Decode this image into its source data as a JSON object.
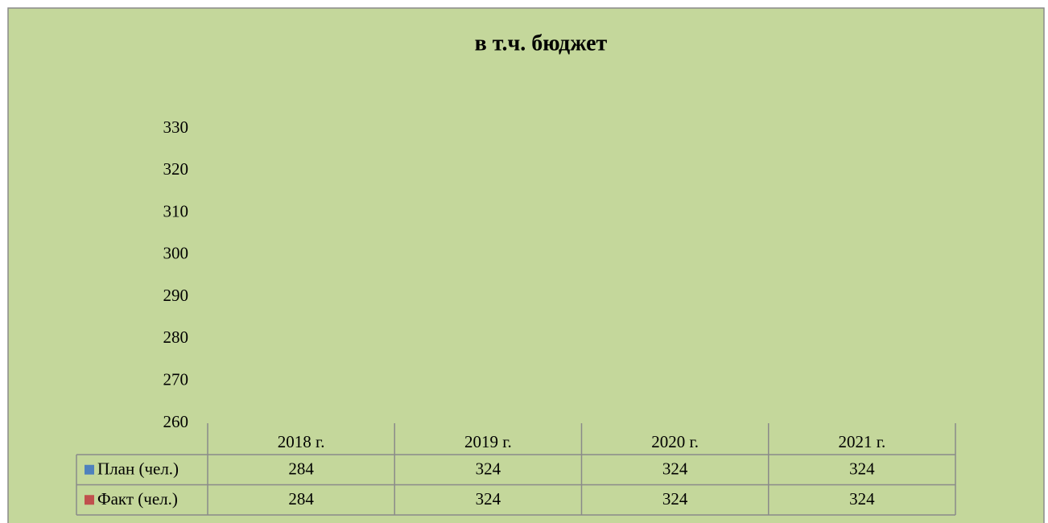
{
  "chart_data": {
    "type": "bar",
    "title": "в т.ч. бюджет",
    "categories": [
      "2018 г.",
      "2019 г.",
      "2020 г.",
      "2021 г."
    ],
    "series": [
      {
        "name": "План (чел.)",
        "color": "#4f81bd",
        "values": [
          284,
          324,
          324,
          324
        ]
      },
      {
        "name": "Факт (чел.)",
        "color": "#c0504d",
        "values": [
          284,
          324,
          324,
          324
        ]
      }
    ],
    "ylim": [
      260,
      330
    ],
    "yticks": [
      260,
      270,
      280,
      290,
      300,
      310,
      320,
      330
    ],
    "grid": false
  }
}
